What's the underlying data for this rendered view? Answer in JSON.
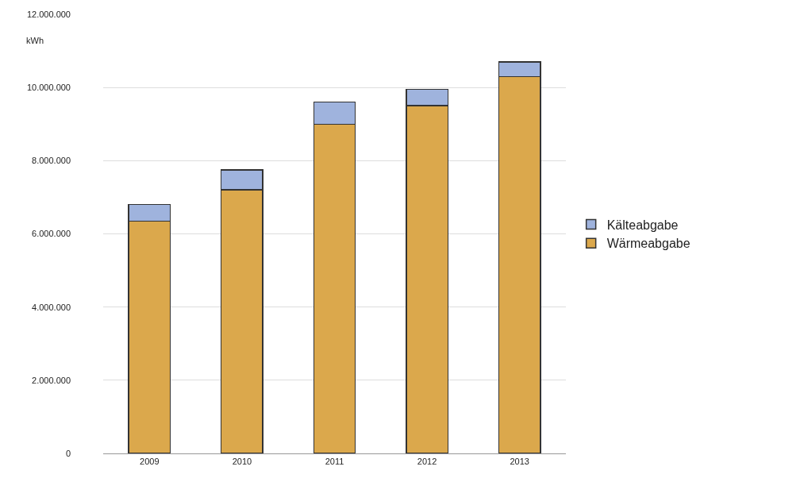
{
  "chart_data": {
    "type": "bar",
    "ylabel": "kWh",
    "categories": [
      "2009",
      "2010",
      "2011",
      "2012",
      "2013"
    ],
    "stacked": true,
    "series": [
      {
        "name": "Wärmeabgabe",
        "color": "#dba84c",
        "values": [
          6350000,
          7200000,
          9000000,
          9500000,
          10300000
        ]
      },
      {
        "name": "Kälteabgabe",
        "color": "#9fb3dd",
        "values": [
          450000,
          550000,
          600000,
          450000,
          400000
        ]
      }
    ],
    "ylim": [
      0,
      12000000
    ],
    "yticks": [
      {
        "value": 0,
        "label": "0"
      },
      {
        "value": 2000000,
        "label": "2.000.000"
      },
      {
        "value": 4000000,
        "label": "4.000.000"
      },
      {
        "value": 6000000,
        "label": "6.000.000"
      },
      {
        "value": 8000000,
        "label": "8.000.000"
      },
      {
        "value": 10000000,
        "label": "10.000.000"
      },
      {
        "value": 12000000,
        "label": "12.000.000"
      }
    ],
    "grid": "y",
    "legend": "right"
  }
}
